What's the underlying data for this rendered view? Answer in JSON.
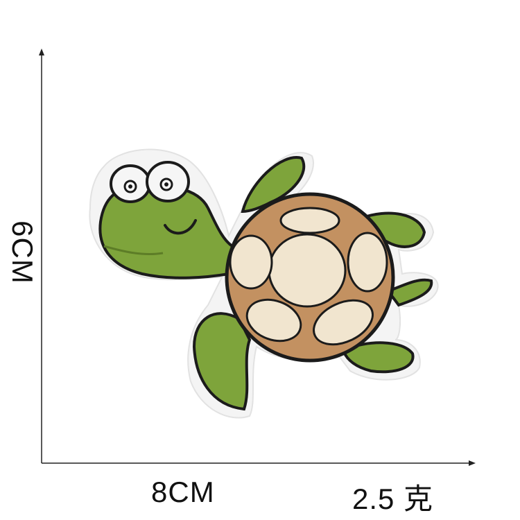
{
  "dimensions": {
    "width_label": "8CM",
    "height_label": "6CM",
    "weight_label": "2.5 克"
  },
  "colors": {
    "turtle_green": "#7ea43b",
    "shell_brown": "#c39161",
    "shell_spots": "#f1e5cf",
    "outline": "#1b1b1b",
    "backing": "#f5f5f5"
  },
  "icons": {
    "patch": "turtle-patch-icon"
  }
}
